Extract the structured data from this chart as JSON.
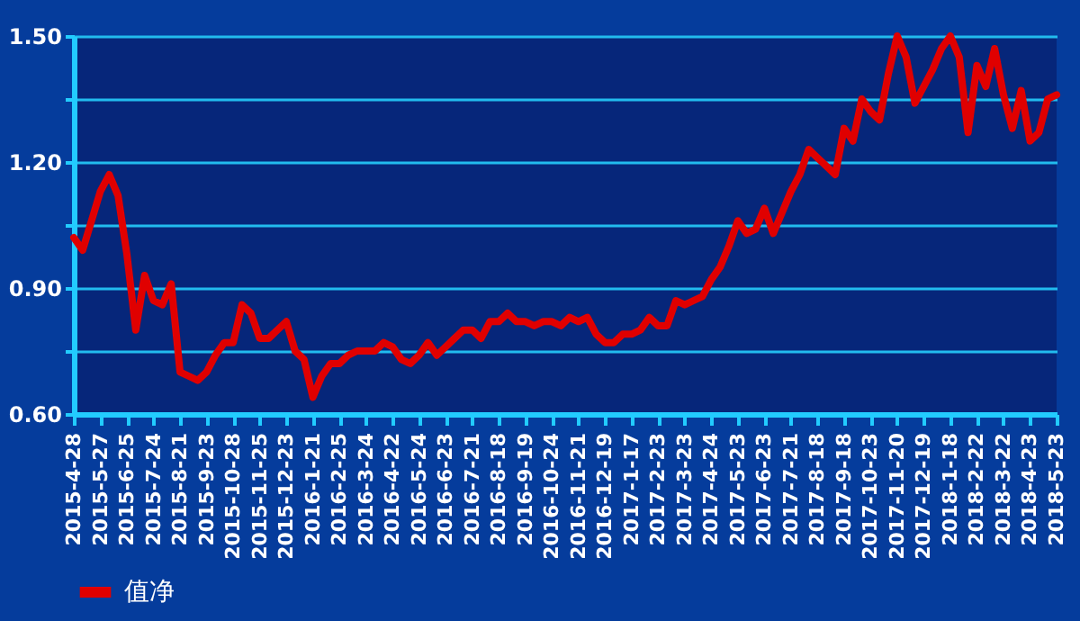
{
  "chart_data": {
    "type": "line",
    "categories": [
      "2015-4-28",
      null,
      null,
      "2015-5-27",
      null,
      null,
      "2015-6-25",
      null,
      null,
      "2015-7-24",
      null,
      null,
      "2015-8-21",
      null,
      null,
      "2015-9-23",
      null,
      null,
      "2015-10-28",
      null,
      null,
      "2015-11-25",
      null,
      null,
      "2015-12-23",
      null,
      null,
      "2016-1-21",
      null,
      null,
      "2016-2-25",
      null,
      null,
      "2016-3-24",
      null,
      null,
      "2016-4-22",
      null,
      null,
      "2016-5-24",
      null,
      null,
      "2016-6-23",
      null,
      null,
      "2016-7-21",
      null,
      null,
      "2016-8-18",
      null,
      null,
      "2016-9-19",
      null,
      null,
      "2016-10-24",
      null,
      null,
      "2016-11-21",
      null,
      null,
      "2016-12-19",
      null,
      null,
      "2017-1-17",
      null,
      null,
      "2017-2-23",
      null,
      null,
      "2017-3-23",
      null,
      null,
      "2017-4-24",
      null,
      null,
      "2017-5-23",
      null,
      null,
      "2017-6-23",
      null,
      null,
      "2017-7-21",
      null,
      null,
      "2017-8-18",
      null,
      null,
      "2017-9-18",
      null,
      null,
      "2017-10-23",
      null,
      null,
      "2017-11-20",
      null,
      null,
      "2017-12-19",
      null,
      null,
      "2018-1-18",
      null,
      null,
      "2018-2-22",
      null,
      null,
      "2018-3-22",
      null,
      null,
      "2018-4-23",
      null,
      null,
      "2018-5-23"
    ],
    "series": [
      {
        "name": "值净",
        "color": "#e00000",
        "values": [
          1.02,
          0.99,
          1.06,
          1.13,
          1.17,
          1.12,
          0.98,
          0.8,
          0.93,
          0.87,
          0.86,
          0.91,
          0.7,
          0.69,
          0.68,
          0.7,
          0.74,
          0.77,
          0.77,
          0.86,
          0.84,
          0.78,
          0.78,
          0.8,
          0.82,
          0.75,
          0.73,
          0.64,
          0.69,
          0.72,
          0.72,
          0.74,
          0.75,
          0.75,
          0.75,
          0.77,
          0.76,
          0.73,
          0.72,
          0.74,
          0.77,
          0.74,
          0.76,
          0.78,
          0.8,
          0.8,
          0.78,
          0.82,
          0.82,
          0.84,
          0.82,
          0.82,
          0.81,
          0.82,
          0.82,
          0.81,
          0.83,
          0.82,
          0.83,
          0.79,
          0.77,
          0.77,
          0.79,
          0.79,
          0.8,
          0.83,
          0.81,
          0.81,
          0.87,
          0.86,
          0.87,
          0.88,
          0.92,
          0.95,
          1.0,
          1.06,
          1.03,
          1.04,
          1.09,
          1.03,
          1.08,
          1.13,
          1.17,
          1.23,
          1.21,
          1.19,
          1.17,
          1.28,
          1.25,
          1.35,
          1.32,
          1.3,
          1.41,
          1.5,
          1.45,
          1.34,
          1.38,
          1.42,
          1.47,
          1.5,
          1.45,
          1.27,
          1.43,
          1.38,
          1.47,
          1.36,
          1.28,
          1.37,
          1.25,
          1.27,
          1.35,
          1.36
        ]
      }
    ],
    "ylim": [
      0.6,
      1.5
    ],
    "yticks": [
      {
        "value": 0.6,
        "label": "0.60"
      },
      {
        "value": 0.75,
        "label": null
      },
      {
        "value": 0.9,
        "label": "0.90"
      },
      {
        "value": 1.05,
        "label": null
      },
      {
        "value": 1.2,
        "label": "1.20"
      },
      {
        "value": 1.35,
        "label": null
      },
      {
        "value": 1.5,
        "label": "1.50"
      }
    ],
    "grid": "y",
    "legend": "bottom left",
    "marker": "none",
    "line_style": "solid"
  }
}
